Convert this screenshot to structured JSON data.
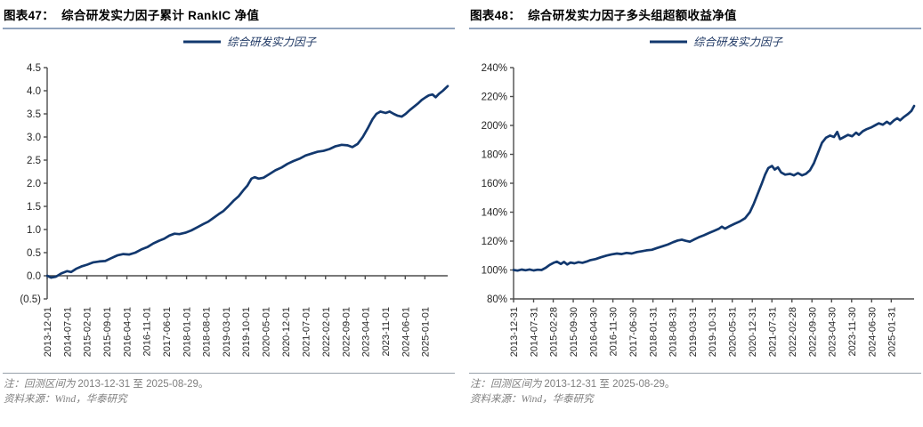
{
  "panels": [
    {
      "title": "图表47：  综合研发实力因子累计 RankIC 净值",
      "note1_zh": "注：回测区间为 ",
      "note1_num": "2013-12-31 至 2025-08-29。",
      "note2_zh": "资料来源：",
      "note2_rest": "Wind，华泰研究"
    },
    {
      "title": "图表48：  综合研发实力因子多头组超额收益净值",
      "note1_zh": "注：回测区间为 ",
      "note1_num": "2013-12-31 至 2025-08-29。",
      "note2_zh": "资料来源：",
      "note2_rest": "Wind，华泰研究"
    }
  ],
  "colors": {
    "line_navy": "#12386e",
    "legend_text": "#1f3864",
    "axis": "#4d4d4d",
    "title_rule": "#91a3bd",
    "note_text": "#7f7f7f"
  },
  "chart_data": [
    {
      "type": "line",
      "title": "综合研发实力因子累计 RankIC 净值",
      "legend_position": "top-center",
      "grid": false,
      "ylim": [
        -0.5,
        4.5
      ],
      "x_axis_at": 0,
      "y_ticks": [
        {
          "label": "4.5",
          "v": 4.5
        },
        {
          "label": "4.0",
          "v": 4.0
        },
        {
          "label": "3.5",
          "v": 3.5
        },
        {
          "label": "3.0",
          "v": 3.0
        },
        {
          "label": "2.5",
          "v": 2.5
        },
        {
          "label": "2.0",
          "v": 2.0
        },
        {
          "label": "1.5",
          "v": 1.5
        },
        {
          "label": "1.0",
          "v": 1.0
        },
        {
          "label": "0.5",
          "v": 0.5
        },
        {
          "label": "0.0",
          "v": 0.0
        },
        {
          "label": "(0.5)",
          "v": -0.5
        }
      ],
      "x_ticks": [
        {
          "label": "2013-12-01",
          "t": 0.0
        },
        {
          "label": "2014-07-01",
          "t": 0.05
        },
        {
          "label": "2015-02-01",
          "t": 0.099
        },
        {
          "label": "2015-09-01",
          "t": 0.149
        },
        {
          "label": "2016-04-01",
          "t": 0.199
        },
        {
          "label": "2016-11-01",
          "t": 0.248
        },
        {
          "label": "2017-06-01",
          "t": 0.298
        },
        {
          "label": "2018-01-01",
          "t": 0.348
        },
        {
          "label": "2018-08-01",
          "t": 0.397
        },
        {
          "label": "2019-03-01",
          "t": 0.447
        },
        {
          "label": "2019-10-01",
          "t": 0.496
        },
        {
          "label": "2020-05-01",
          "t": 0.546
        },
        {
          "label": "2020-12-01",
          "t": 0.596
        },
        {
          "label": "2021-07-01",
          "t": 0.645
        },
        {
          "label": "2022-02-01",
          "t": 0.695
        },
        {
          "label": "2022-09-01",
          "t": 0.745
        },
        {
          "label": "2023-04-01",
          "t": 0.794
        },
        {
          "label": "2023-11-01",
          "t": 0.844
        },
        {
          "label": "2024-06-01",
          "t": 0.894
        },
        {
          "label": "2025-01-01",
          "t": 0.943
        }
      ],
      "series": [
        {
          "name": "综合研发实力因子",
          "color": "#12386e",
          "points": [
            [
              0,
              0
            ],
            [
              0.01,
              -0.04
            ],
            [
              0.022,
              -0.02
            ],
            [
              0.035,
              0.05
            ],
            [
              0.05,
              0.1
            ],
            [
              0.06,
              0.08
            ],
            [
              0.072,
              0.15
            ],
            [
              0.085,
              0.2
            ],
            [
              0.1,
              0.24
            ],
            [
              0.115,
              0.29
            ],
            [
              0.13,
              0.31
            ],
            [
              0.145,
              0.32
            ],
            [
              0.16,
              0.38
            ],
            [
              0.175,
              0.44
            ],
            [
              0.19,
              0.47
            ],
            [
              0.205,
              0.46
            ],
            [
              0.22,
              0.5
            ],
            [
              0.235,
              0.57
            ],
            [
              0.25,
              0.62
            ],
            [
              0.265,
              0.7
            ],
            [
              0.28,
              0.76
            ],
            [
              0.292,
              0.8
            ],
            [
              0.305,
              0.87
            ],
            [
              0.318,
              0.91
            ],
            [
              0.33,
              0.9
            ],
            [
              0.345,
              0.93
            ],
            [
              0.36,
              0.98
            ],
            [
              0.375,
              1.05
            ],
            [
              0.39,
              1.12
            ],
            [
              0.402,
              1.17
            ],
            [
              0.415,
              1.25
            ],
            [
              0.428,
              1.33
            ],
            [
              0.44,
              1.4
            ],
            [
              0.452,
              1.5
            ],
            [
              0.465,
              1.62
            ],
            [
              0.478,
              1.72
            ],
            [
              0.49,
              1.85
            ],
            [
              0.5,
              1.95
            ],
            [
              0.51,
              2.1
            ],
            [
              0.518,
              2.13
            ],
            [
              0.528,
              2.1
            ],
            [
              0.54,
              2.12
            ],
            [
              0.555,
              2.2
            ],
            [
              0.57,
              2.28
            ],
            [
              0.585,
              2.34
            ],
            [
              0.6,
              2.42
            ],
            [
              0.615,
              2.48
            ],
            [
              0.63,
              2.53
            ],
            [
              0.645,
              2.6
            ],
            [
              0.66,
              2.64
            ],
            [
              0.675,
              2.68
            ],
            [
              0.69,
              2.7
            ],
            [
              0.705,
              2.74
            ],
            [
              0.72,
              2.8
            ],
            [
              0.735,
              2.83
            ],
            [
              0.75,
              2.82
            ],
            [
              0.762,
              2.78
            ],
            [
              0.775,
              2.85
            ],
            [
              0.788,
              3.0
            ],
            [
              0.8,
              3.18
            ],
            [
              0.812,
              3.38
            ],
            [
              0.822,
              3.5
            ],
            [
              0.832,
              3.55
            ],
            [
              0.845,
              3.52
            ],
            [
              0.855,
              3.55
            ],
            [
              0.865,
              3.5
            ],
            [
              0.875,
              3.46
            ],
            [
              0.885,
              3.44
            ],
            [
              0.895,
              3.5
            ],
            [
              0.905,
              3.58
            ],
            [
              0.915,
              3.65
            ],
            [
              0.925,
              3.72
            ],
            [
              0.935,
              3.8
            ],
            [
              0.945,
              3.86
            ],
            [
              0.953,
              3.9
            ],
            [
              0.962,
              3.92
            ],
            [
              0.97,
              3.86
            ],
            [
              0.978,
              3.93
            ],
            [
              0.988,
              4.0
            ],
            [
              1,
              4.1
            ]
          ]
        }
      ]
    },
    {
      "type": "line",
      "title": "综合研发实力因子多头组超额收益净值",
      "legend_position": "top-center",
      "grid": false,
      "ylim": [
        80,
        240
      ],
      "x_axis_at": 80,
      "y_ticks": [
        {
          "label": "240%",
          "v": 240
        },
        {
          "label": "220%",
          "v": 220
        },
        {
          "label": "200%",
          "v": 200
        },
        {
          "label": "180%",
          "v": 180
        },
        {
          "label": "160%",
          "v": 160
        },
        {
          "label": "140%",
          "v": 140
        },
        {
          "label": "120%",
          "v": 120
        },
        {
          "label": "100%",
          "v": 100
        },
        {
          "label": "80%",
          "v": 80
        }
      ],
      "x_ticks": [
        {
          "label": "2013-12-31",
          "t": 0.0
        },
        {
          "label": "2014-07-31",
          "t": 0.05
        },
        {
          "label": "2015-02-28",
          "t": 0.099
        },
        {
          "label": "2015-09-30",
          "t": 0.149
        },
        {
          "label": "2016-04-30",
          "t": 0.199
        },
        {
          "label": "2016-11-30",
          "t": 0.248
        },
        {
          "label": "2017-06-30",
          "t": 0.298
        },
        {
          "label": "2018-01-31",
          "t": 0.348
        },
        {
          "label": "2018-08-31",
          "t": 0.397
        },
        {
          "label": "2019-03-31",
          "t": 0.447
        },
        {
          "label": "2019-10-31",
          "t": 0.496
        },
        {
          "label": "2020-05-31",
          "t": 0.546
        },
        {
          "label": "2020-12-31",
          "t": 0.596
        },
        {
          "label": "2021-07-31",
          "t": 0.645
        },
        {
          "label": "2022-02-28",
          "t": 0.695
        },
        {
          "label": "2022-09-30",
          "t": 0.745
        },
        {
          "label": "2023-04-30",
          "t": 0.794
        },
        {
          "label": "2023-11-30",
          "t": 0.844
        },
        {
          "label": "2024-06-30",
          "t": 0.894
        },
        {
          "label": "2025-01-31",
          "t": 0.943
        }
      ],
      "series": [
        {
          "name": "综合研发实力因子",
          "color": "#12386e",
          "points": [
            [
              0,
              100
            ],
            [
              0.01,
              99.6
            ],
            [
              0.02,
              100.3
            ],
            [
              0.03,
              99.8
            ],
            [
              0.04,
              100.4
            ],
            [
              0.05,
              99.7
            ],
            [
              0.06,
              100.2
            ],
            [
              0.07,
              100
            ],
            [
              0.08,
              101.5
            ],
            [
              0.09,
              103.5
            ],
            [
              0.1,
              105
            ],
            [
              0.108,
              105.8
            ],
            [
              0.118,
              104.2
            ],
            [
              0.126,
              105.6
            ],
            [
              0.134,
              103.8
            ],
            [
              0.142,
              105.2
            ],
            [
              0.152,
              104.6
            ],
            [
              0.162,
              105.4
            ],
            [
              0.172,
              105
            ],
            [
              0.182,
              105.8
            ],
            [
              0.192,
              106.8
            ],
            [
              0.205,
              107.6
            ],
            [
              0.218,
              108.8
            ],
            [
              0.232,
              110
            ],
            [
              0.245,
              110.8
            ],
            [
              0.258,
              111.4
            ],
            [
              0.27,
              111
            ],
            [
              0.282,
              111.8
            ],
            [
              0.295,
              111.4
            ],
            [
              0.308,
              112.4
            ],
            [
              0.32,
              113
            ],
            [
              0.332,
              113.6
            ],
            [
              0.345,
              114
            ],
            [
              0.358,
              115.2
            ],
            [
              0.372,
              116.4
            ],
            [
              0.385,
              117.6
            ],
            [
              0.398,
              119.2
            ],
            [
              0.41,
              120.4
            ],
            [
              0.42,
              121
            ],
            [
              0.43,
              120.2
            ],
            [
              0.44,
              119.6
            ],
            [
              0.45,
              121
            ],
            [
              0.462,
              122.6
            ],
            [
              0.475,
              124
            ],
            [
              0.488,
              125.6
            ],
            [
              0.5,
              127
            ],
            [
              0.512,
              128.4
            ],
            [
              0.52,
              130
            ],
            [
              0.528,
              128.6
            ],
            [
              0.54,
              130.4
            ],
            [
              0.552,
              132
            ],
            [
              0.565,
              133.6
            ],
            [
              0.578,
              135.8
            ],
            [
              0.59,
              140
            ],
            [
              0.6,
              146
            ],
            [
              0.61,
              153
            ],
            [
              0.62,
              160
            ],
            [
              0.628,
              166
            ],
            [
              0.636,
              170.5
            ],
            [
              0.645,
              172
            ],
            [
              0.652,
              169.5
            ],
            [
              0.66,
              171
            ],
            [
              0.668,
              167.5
            ],
            [
              0.678,
              166
            ],
            [
              0.69,
              166.5
            ],
            [
              0.7,
              165.5
            ],
            [
              0.71,
              167
            ],
            [
              0.72,
              165.5
            ],
            [
              0.73,
              166.5
            ],
            [
              0.74,
              169
            ],
            [
              0.75,
              174
            ],
            [
              0.76,
              181
            ],
            [
              0.77,
              188
            ],
            [
              0.78,
              191.5
            ],
            [
              0.79,
              193
            ],
            [
              0.8,
              192
            ],
            [
              0.808,
              195.5
            ],
            [
              0.815,
              190.5
            ],
            [
              0.825,
              192
            ],
            [
              0.835,
              193.5
            ],
            [
              0.845,
              192.5
            ],
            [
              0.855,
              195
            ],
            [
              0.862,
              193.5
            ],
            [
              0.872,
              196
            ],
            [
              0.882,
              197.5
            ],
            [
              0.892,
              198.5
            ],
            [
              0.902,
              200
            ],
            [
              0.912,
              201.5
            ],
            [
              0.922,
              200.5
            ],
            [
              0.932,
              202.5
            ],
            [
              0.94,
              201
            ],
            [
              0.95,
              203.5
            ],
            [
              0.958,
              205
            ],
            [
              0.965,
              203.5
            ],
            [
              0.975,
              206
            ],
            [
              0.985,
              208
            ],
            [
              0.993,
              210
            ],
            [
              1,
              213.5
            ]
          ]
        }
      ]
    }
  ]
}
